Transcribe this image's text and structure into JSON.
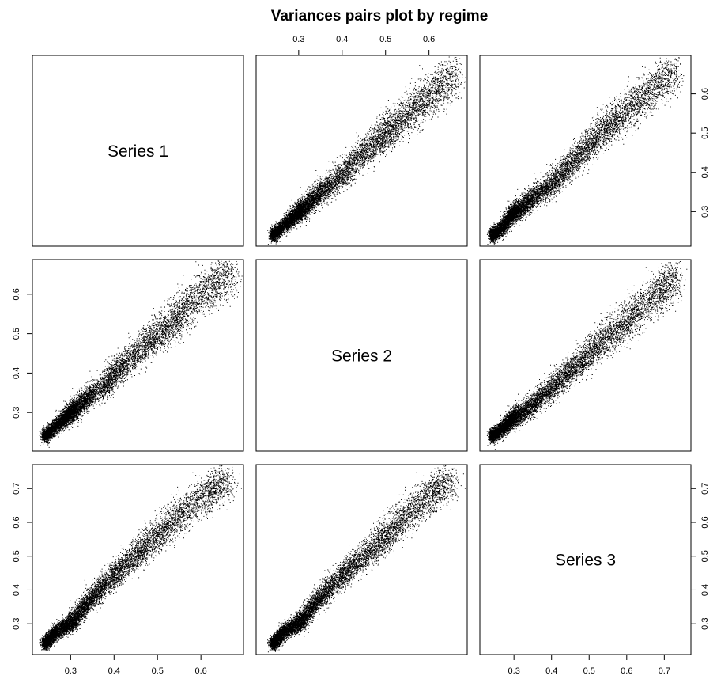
{
  "chart_data": {
    "type": "scatter",
    "title": "Variances pairs plot by regime",
    "variables": [
      {
        "name": "Series 1",
        "range": [
          0.23,
          0.68
        ],
        "ticks": [
          0.3,
          0.4,
          0.5,
          0.6
        ],
        "tick_labels": [
          "0.3",
          "0.4",
          "0.5",
          "0.6"
        ]
      },
      {
        "name": "Series 2",
        "range": [
          0.22,
          0.67
        ],
        "ticks": [
          0.3,
          0.4,
          0.5,
          0.6
        ],
        "tick_labels": [
          "0.3",
          "0.4",
          "0.5",
          "0.6"
        ]
      },
      {
        "name": "Series 3",
        "range": [
          0.23,
          0.75
        ],
        "ticks": [
          0.3,
          0.4,
          0.5,
          0.6,
          0.7
        ],
        "tick_labels": [
          "0.3",
          "0.4",
          "0.5",
          "0.6",
          "0.7"
        ]
      }
    ],
    "axes": {
      "top": [
        1
      ],
      "bottom": [
        0,
        2
      ],
      "left": [
        1,
        2
      ],
      "right": [
        0,
        2
      ]
    },
    "grid": false,
    "legend": "none",
    "marker_color": "#000000",
    "points_note_free": true,
    "pairs": [
      {
        "x": "Series 2",
        "y": "Series 1",
        "points": [
          [
            0.24,
            0.24
          ],
          [
            0.27,
            0.27
          ],
          [
            0.29,
            0.29
          ],
          [
            0.3,
            0.3
          ],
          [
            0.31,
            0.31
          ],
          [
            0.33,
            0.33
          ],
          [
            0.35,
            0.35
          ],
          [
            0.37,
            0.37
          ],
          [
            0.4,
            0.39
          ],
          [
            0.42,
            0.42
          ],
          [
            0.45,
            0.45
          ],
          [
            0.48,
            0.48
          ],
          [
            0.5,
            0.5
          ],
          [
            0.52,
            0.52
          ],
          [
            0.55,
            0.55
          ],
          [
            0.58,
            0.57
          ],
          [
            0.6,
            0.6
          ],
          [
            0.63,
            0.62
          ],
          [
            0.66,
            0.66
          ]
        ]
      },
      {
        "x": "Series 3",
        "y": "Series 1",
        "points": [
          [
            0.24,
            0.24
          ],
          [
            0.27,
            0.26
          ],
          [
            0.29,
            0.29
          ],
          [
            0.3,
            0.3
          ],
          [
            0.32,
            0.31
          ],
          [
            0.34,
            0.33
          ],
          [
            0.37,
            0.35
          ],
          [
            0.4,
            0.37
          ],
          [
            0.43,
            0.4
          ],
          [
            0.46,
            0.43
          ],
          [
            0.49,
            0.46
          ],
          [
            0.52,
            0.49
          ],
          [
            0.55,
            0.52
          ],
          [
            0.58,
            0.54
          ],
          [
            0.62,
            0.57
          ],
          [
            0.65,
            0.6
          ],
          [
            0.69,
            0.63
          ],
          [
            0.73,
            0.66
          ]
        ]
      },
      {
        "x": "Series 1",
        "y": "Series 2",
        "points": [
          [
            0.24,
            0.24
          ],
          [
            0.27,
            0.27
          ],
          [
            0.29,
            0.29
          ],
          [
            0.3,
            0.3
          ],
          [
            0.31,
            0.31
          ],
          [
            0.33,
            0.33
          ],
          [
            0.35,
            0.35
          ],
          [
            0.38,
            0.37
          ],
          [
            0.4,
            0.4
          ],
          [
            0.42,
            0.42
          ],
          [
            0.45,
            0.45
          ],
          [
            0.48,
            0.48
          ],
          [
            0.5,
            0.5
          ],
          [
            0.53,
            0.52
          ],
          [
            0.55,
            0.55
          ],
          [
            0.58,
            0.58
          ],
          [
            0.61,
            0.61
          ],
          [
            0.64,
            0.63
          ],
          [
            0.67,
            0.66
          ]
        ]
      },
      {
        "x": "Series 3",
        "y": "Series 2",
        "points": [
          [
            0.24,
            0.24
          ],
          [
            0.27,
            0.26
          ],
          [
            0.29,
            0.28
          ],
          [
            0.3,
            0.29
          ],
          [
            0.32,
            0.3
          ],
          [
            0.35,
            0.32
          ],
          [
            0.38,
            0.35
          ],
          [
            0.41,
            0.37
          ],
          [
            0.44,
            0.4
          ],
          [
            0.47,
            0.42
          ],
          [
            0.5,
            0.45
          ],
          [
            0.53,
            0.48
          ],
          [
            0.56,
            0.5
          ],
          [
            0.6,
            0.53
          ],
          [
            0.63,
            0.56
          ],
          [
            0.67,
            0.59
          ],
          [
            0.7,
            0.62
          ],
          [
            0.73,
            0.65
          ]
        ]
      },
      {
        "x": "Series 1",
        "y": "Series 3",
        "points": [
          [
            0.24,
            0.24
          ],
          [
            0.26,
            0.27
          ],
          [
            0.28,
            0.29
          ],
          [
            0.3,
            0.3
          ],
          [
            0.31,
            0.32
          ],
          [
            0.33,
            0.35
          ],
          [
            0.35,
            0.38
          ],
          [
            0.37,
            0.41
          ],
          [
            0.4,
            0.44
          ],
          [
            0.42,
            0.47
          ],
          [
            0.45,
            0.5
          ],
          [
            0.47,
            0.53
          ],
          [
            0.5,
            0.56
          ],
          [
            0.53,
            0.6
          ],
          [
            0.56,
            0.63
          ],
          [
            0.6,
            0.67
          ],
          [
            0.63,
            0.7
          ],
          [
            0.66,
            0.73
          ]
        ]
      },
      {
        "x": "Series 2",
        "y": "Series 3",
        "points": [
          [
            0.24,
            0.24
          ],
          [
            0.26,
            0.27
          ],
          [
            0.28,
            0.29
          ],
          [
            0.3,
            0.3
          ],
          [
            0.31,
            0.32
          ],
          [
            0.33,
            0.35
          ],
          [
            0.35,
            0.38
          ],
          [
            0.37,
            0.41
          ],
          [
            0.4,
            0.44
          ],
          [
            0.42,
            0.47
          ],
          [
            0.45,
            0.5
          ],
          [
            0.48,
            0.53
          ],
          [
            0.5,
            0.56
          ],
          [
            0.53,
            0.6
          ],
          [
            0.56,
            0.63
          ],
          [
            0.59,
            0.67
          ],
          [
            0.62,
            0.7
          ],
          [
            0.65,
            0.73
          ]
        ]
      }
    ]
  }
}
